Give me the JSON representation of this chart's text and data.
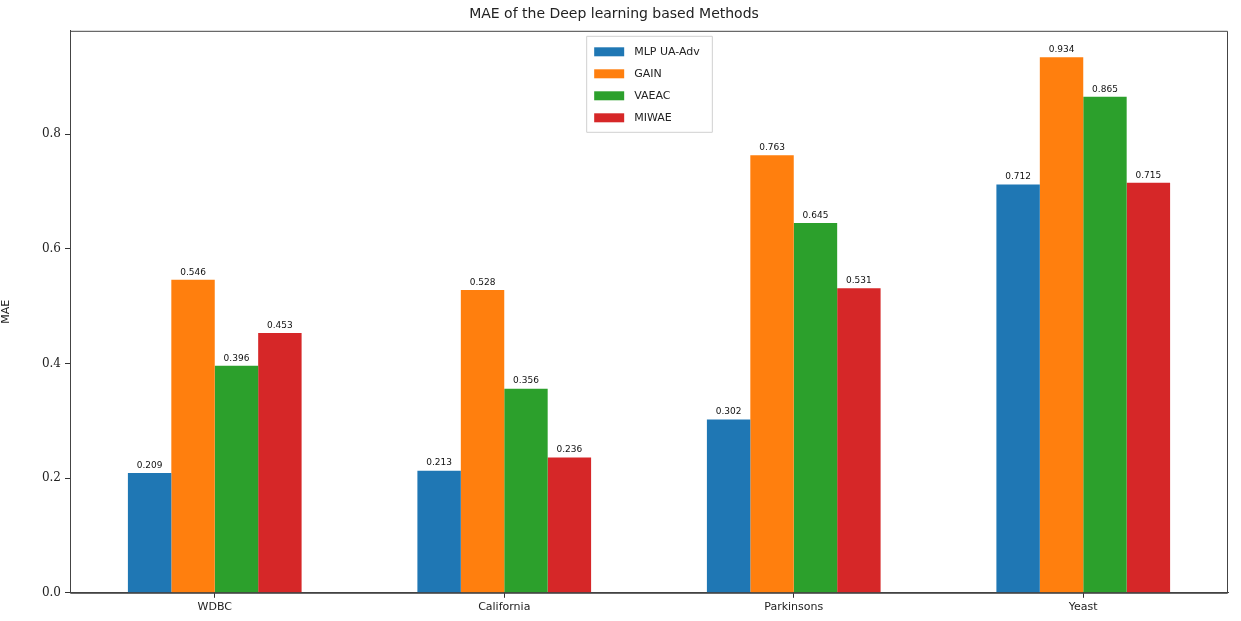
{
  "chart_data": {
    "type": "bar",
    "title": "MAE of the Deep learning based Methods",
    "ylabel": "MAE",
    "categories": [
      "WDBC",
      "California",
      "Parkinsons",
      "Yeast"
    ],
    "series": [
      {
        "name": "MLP UA-Adv",
        "color": "#1f77b4",
        "values": [
          0.209,
          0.213,
          0.302,
          0.712
        ]
      },
      {
        "name": "GAIN",
        "color": "#ff7f0e",
        "values": [
          0.546,
          0.528,
          0.763,
          0.934
        ]
      },
      {
        "name": "VAEAC",
        "color": "#2ca02c",
        "values": [
          0.396,
          0.356,
          0.645,
          0.865
        ]
      },
      {
        "name": "MIWAE",
        "color": "#d62728",
        "values": [
          0.453,
          0.236,
          0.531,
          0.715
        ]
      }
    ],
    "ylim": [
      0,
      0.98
    ],
    "yticks": [
      {
        "value": 0,
        "label": "0.0"
      },
      0.2,
      0.4,
      0.6,
      0.8
    ],
    "data_labels": true,
    "legend": "top"
  }
}
